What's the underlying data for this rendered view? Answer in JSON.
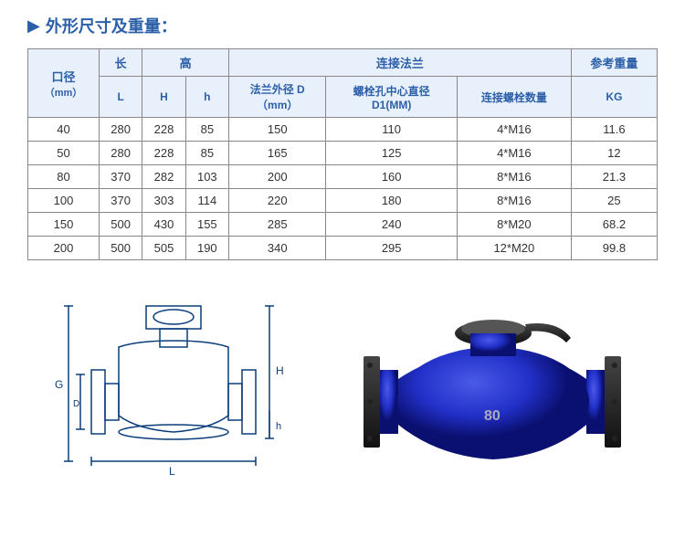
{
  "title": "外形尺寸及重量：",
  "columns": {
    "caliber": "口径",
    "caliber_unit": "（mm）",
    "length": "长",
    "height": "高",
    "flange": "连接法兰",
    "weight": "参考重量",
    "L": "L",
    "H": "H",
    "h": "h",
    "flange_d": "法兰外径 D",
    "flange_d_unit": "（mm）",
    "bolt_circle": "螺栓孔中心直径",
    "bolt_circle_unit": "D1(MM)",
    "bolt_count": "连接螺栓数量",
    "KG": "KG"
  },
  "rows": [
    {
      "caliber": "40",
      "L": "280",
      "H": "228",
      "h": "85",
      "fd": "150",
      "d1": "110",
      "bc": "4*M16",
      "kg": "11.6"
    },
    {
      "caliber": "50",
      "L": "280",
      "H": "228",
      "h": "85",
      "fd": "165",
      "d1": "125",
      "bc": "4*M16",
      "kg": "12"
    },
    {
      "caliber": "80",
      "L": "370",
      "H": "282",
      "h": "103",
      "fd": "200",
      "d1": "160",
      "bc": "8*M16",
      "kg": "21.3"
    },
    {
      "caliber": "100",
      "L": "370",
      "H": "303",
      "h": "114",
      "fd": "220",
      "d1": "180",
      "bc": "8*M16",
      "kg": "25"
    },
    {
      "caliber": "150",
      "L": "500",
      "H": "430",
      "h": "155",
      "fd": "285",
      "d1": "240",
      "bc": "8*M20",
      "kg": "68.2"
    },
    {
      "caliber": "200",
      "L": "500",
      "H": "505",
      "h": "190",
      "fd": "340",
      "d1": "295",
      "bc": "12*M20",
      "kg": "99.8"
    }
  ],
  "product_label": "80",
  "colors": {
    "header_bg": "#e8f0fb",
    "header_text": "#2b5fa8",
    "border": "#888",
    "body_text": "#333",
    "product_blue": "#2230c8",
    "product_dark": "#0a1070"
  }
}
